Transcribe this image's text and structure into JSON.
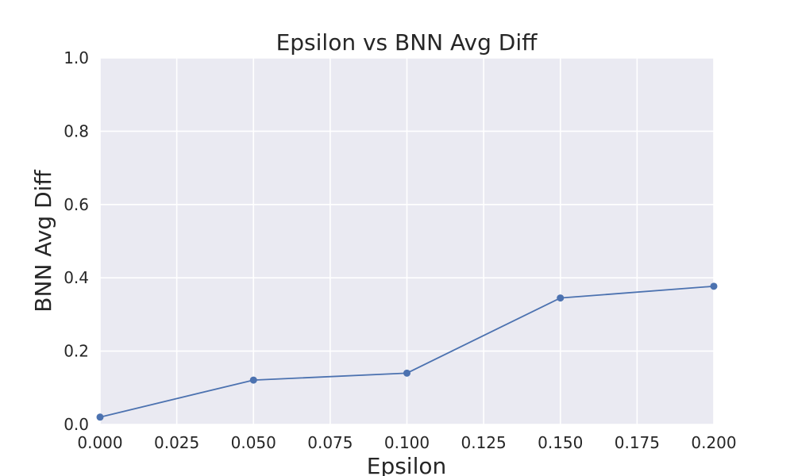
{
  "chart_data": {
    "type": "line",
    "title": "Epsilon vs BNN Avg Diff",
    "xlabel": "Epsilon",
    "ylabel": "BNN Avg Diff",
    "xlim": [
      0.0,
      0.2
    ],
    "ylim": [
      0.0,
      1.0
    ],
    "xticks": [
      "0.000",
      "0.025",
      "0.050",
      "0.075",
      "0.100",
      "0.125",
      "0.150",
      "0.175",
      "0.200"
    ],
    "yticks": [
      "0.0",
      "0.2",
      "0.4",
      "0.6",
      "0.8",
      "1.0"
    ],
    "grid": true,
    "legend": "none",
    "background_color": "#eaeaf2",
    "series": [
      {
        "color": "#4c72b0",
        "marker": "circle",
        "x": [
          0.0,
          0.05,
          0.1,
          0.15,
          0.2
        ],
        "y": [
          0.02,
          0.121,
          0.14,
          0.345,
          0.377
        ]
      }
    ]
  }
}
